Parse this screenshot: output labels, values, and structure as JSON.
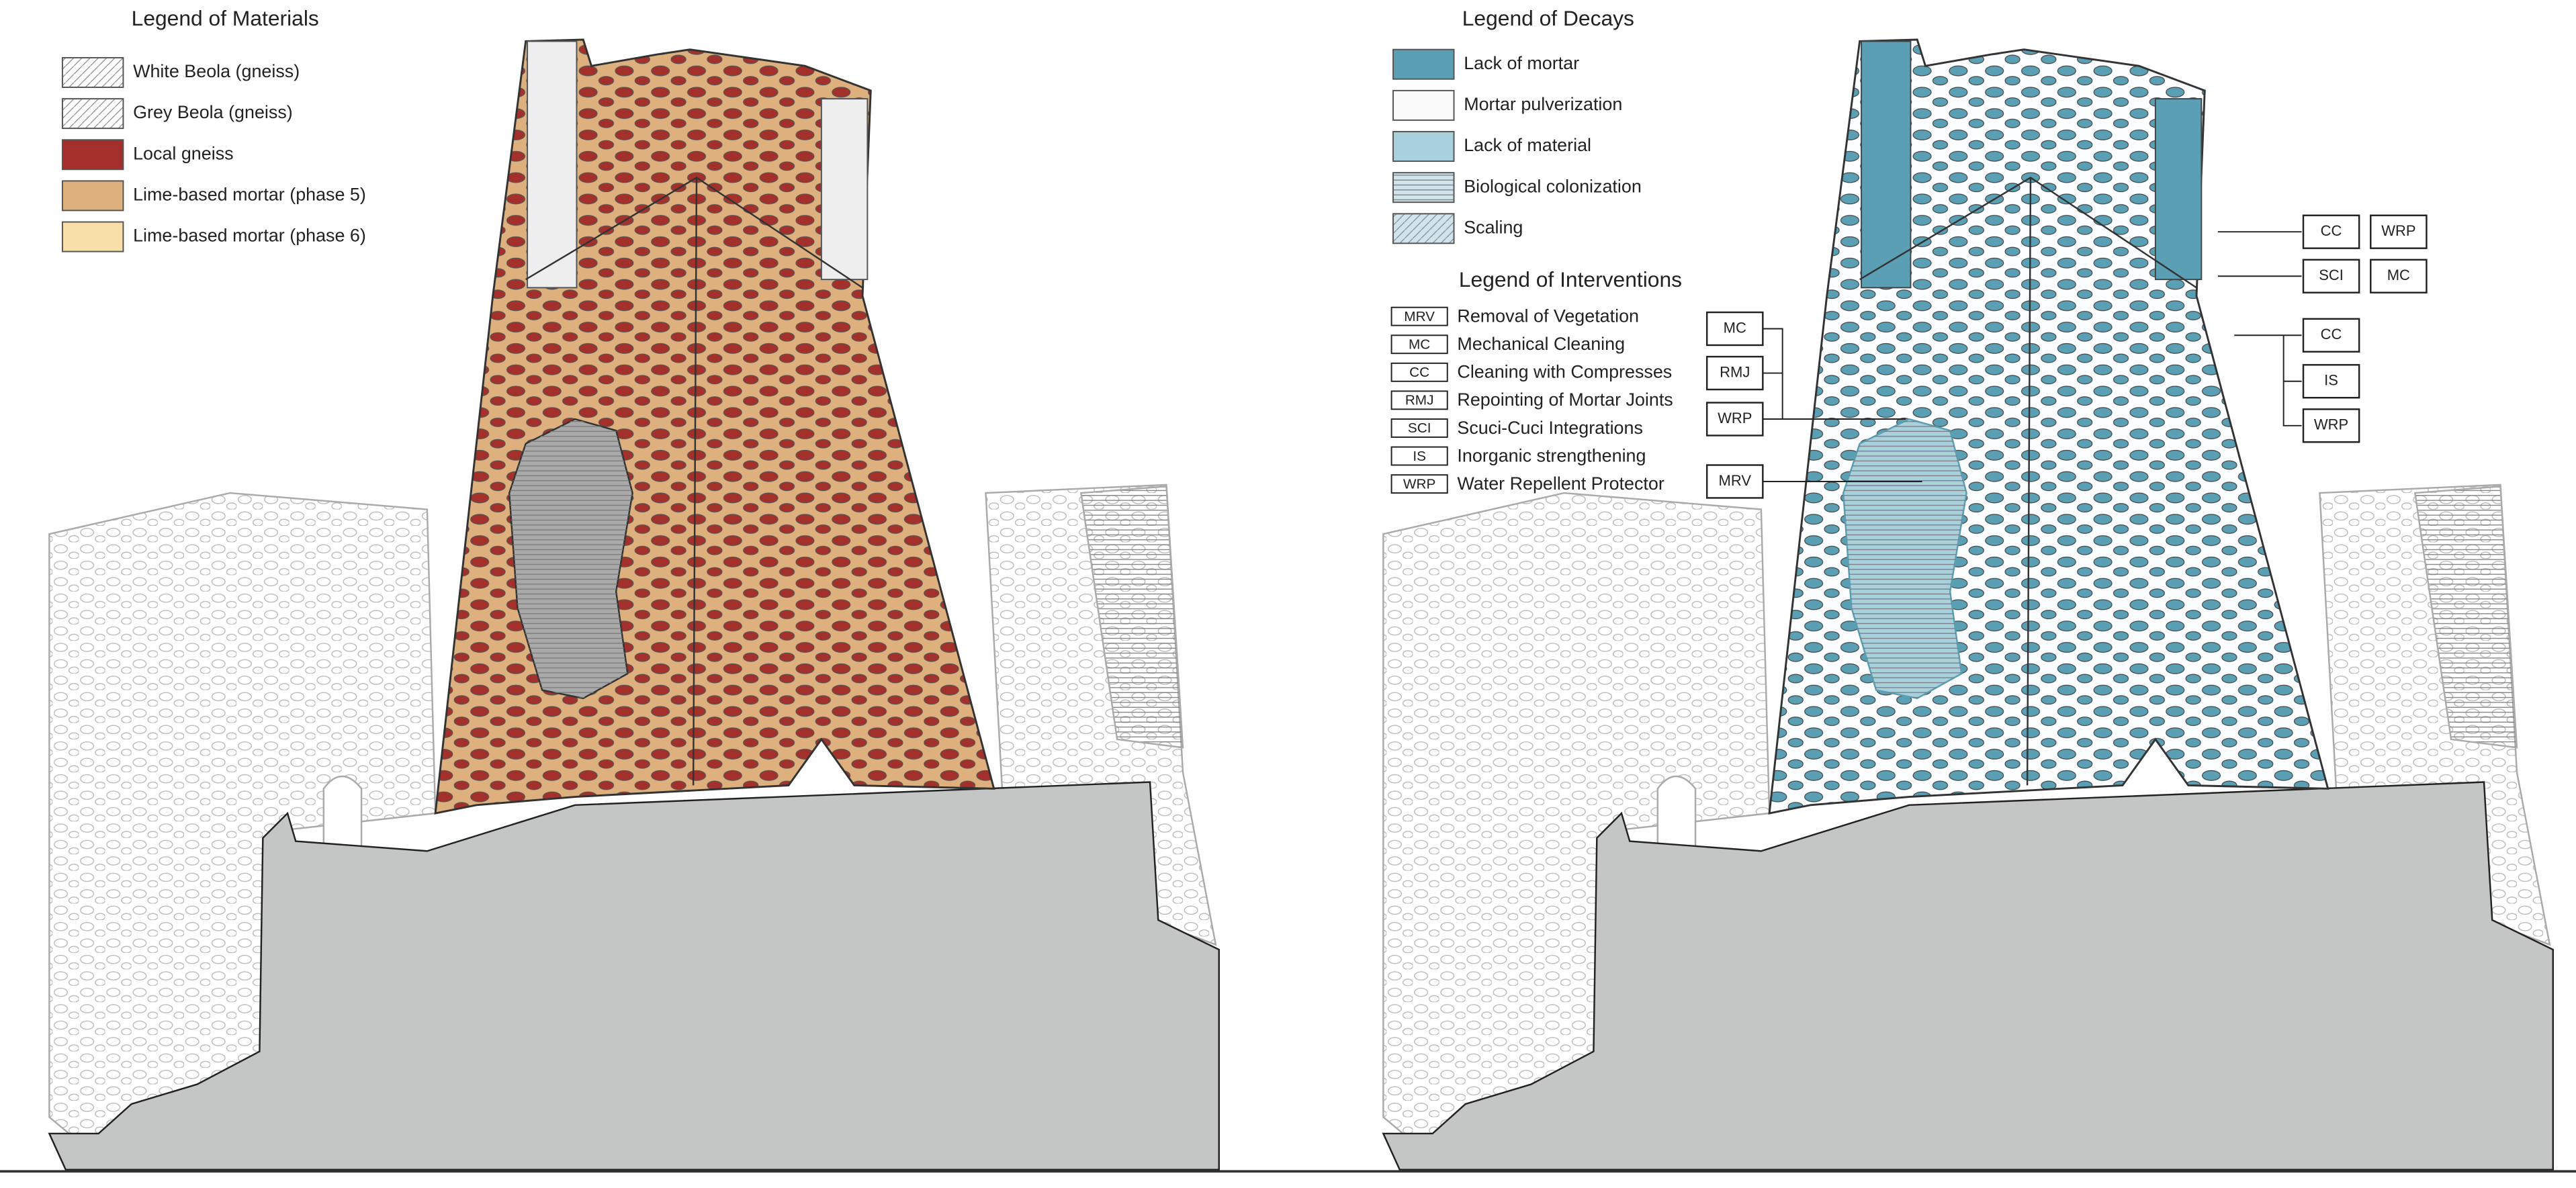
{
  "materials_legend": {
    "title": "Legend of Materials",
    "items": [
      "White Beola (gneiss)",
      "Grey Beola (gneiss)",
      "Local gneiss",
      "Lime-based mortar (phase 5)",
      "Lime-based mortar (phase 6)"
    ]
  },
  "decays_legend": {
    "title": "Legend of Decays",
    "items": [
      "Lack of mortar",
      "Mortar pulverization",
      "Lack of material",
      "Biological colonization",
      "Scaling"
    ]
  },
  "interventions_legend": {
    "title": "Legend of Interventions",
    "items": [
      {
        "code": "MRV",
        "label": "Removal of Vegetation"
      },
      {
        "code": "MC",
        "label": "Mechanical Cleaning"
      },
      {
        "code": "CC",
        "label": "Cleaning with Compresses"
      },
      {
        "code": "RMJ",
        "label": "Repointing of Mortar Joints"
      },
      {
        "code": "SCI",
        "label": "Scuci-Cuci Integrations"
      },
      {
        "code": "IS",
        "label": "Inorganic strengthening"
      },
      {
        "code": "WRP",
        "label": "Water Repellent Protector"
      }
    ]
  },
  "tags": [
    "CC",
    "WRP",
    "SCI",
    "MC",
    "MC",
    "RMJ",
    "WRP",
    "MRV",
    "CC",
    "IS",
    "WRP"
  ]
}
